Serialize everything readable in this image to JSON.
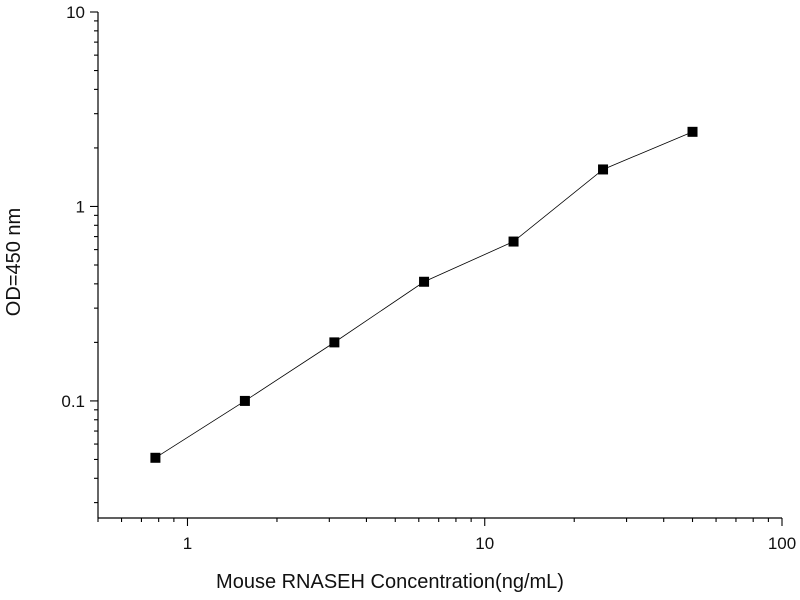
{
  "chart_data": {
    "type": "line",
    "title": "",
    "xlabel": "Mouse RNASEH Concentration(ng/mL)",
    "ylabel": "OD=450 nm",
    "x_scale": "log",
    "y_scale": "log",
    "xlim": [
      0.5,
      100
    ],
    "ylim": [
      0.025,
      10
    ],
    "x_major_ticks": [
      1,
      10,
      100
    ],
    "x_tick_labels": [
      "1",
      "10",
      "100"
    ],
    "y_major_ticks": [
      0.1,
      1,
      10
    ],
    "y_tick_labels": [
      "0.1",
      "1",
      "10"
    ],
    "grid": false,
    "legend": "none",
    "marker": "square",
    "colors": {
      "axis": "#000000",
      "line": "#000000",
      "marker": "#000000"
    },
    "series": [
      {
        "x": [
          0.78,
          1.56,
          3.12,
          6.25,
          12.5,
          25,
          50
        ],
        "y": [
          0.051,
          0.1,
          0.2,
          0.41,
          0.66,
          1.55,
          2.42
        ]
      }
    ]
  }
}
